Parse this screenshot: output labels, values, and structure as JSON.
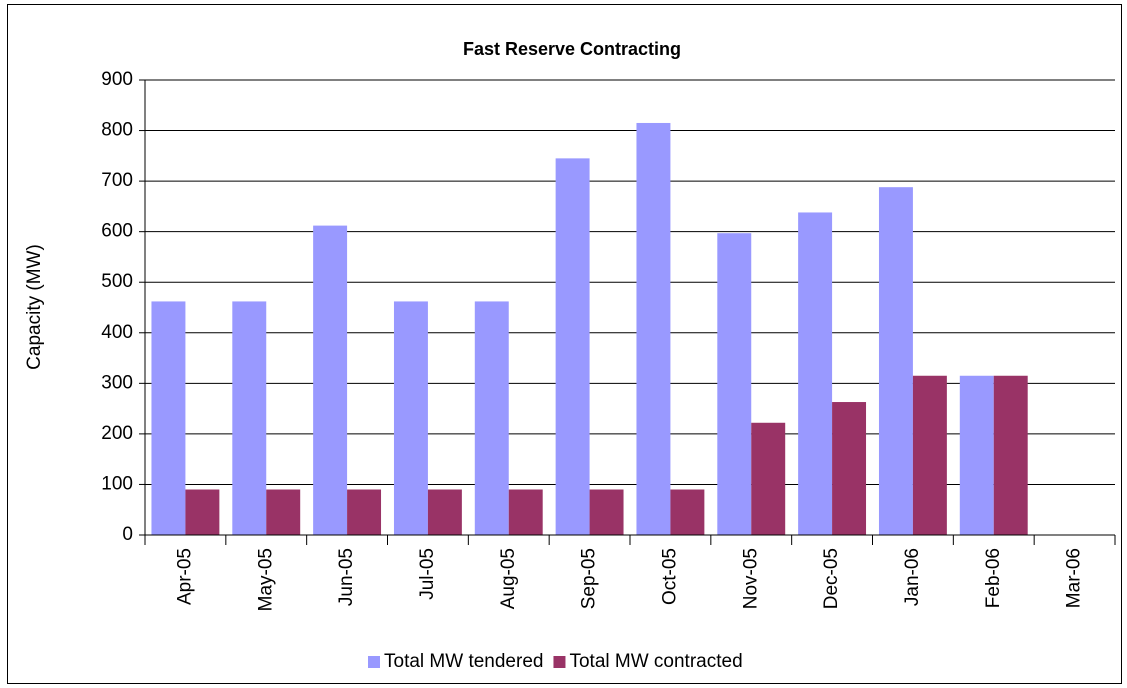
{
  "chart_data": {
    "type": "bar",
    "title": "Fast Reserve Contracting",
    "y_label": "Capacity (MW)",
    "categories": [
      "Apr-05",
      "May-05",
      "Jun-05",
      "Jul-05",
      "Aug-05",
      "Sep-05",
      "Oct-05",
      "Nov-05",
      "Dec-05",
      "Jan-06",
      "Feb-06",
      "Mar-06"
    ],
    "series": [
      {
        "name": "Total MW tendered",
        "color": "#9999ff",
        "values": [
          462,
          462,
          612,
          462,
          462,
          745,
          815,
          597,
          638,
          688,
          315,
          null
        ]
      },
      {
        "name": "Total MW contracted",
        "color": "#993366",
        "values": [
          90,
          90,
          90,
          90,
          90,
          90,
          90,
          222,
          263,
          315,
          315,
          null
        ]
      }
    ],
    "ylim": [
      0,
      900
    ],
    "yticks": [
      0,
      100,
      200,
      300,
      400,
      500,
      600,
      700,
      800,
      900
    ],
    "grid": true,
    "legend": "bottom"
  }
}
